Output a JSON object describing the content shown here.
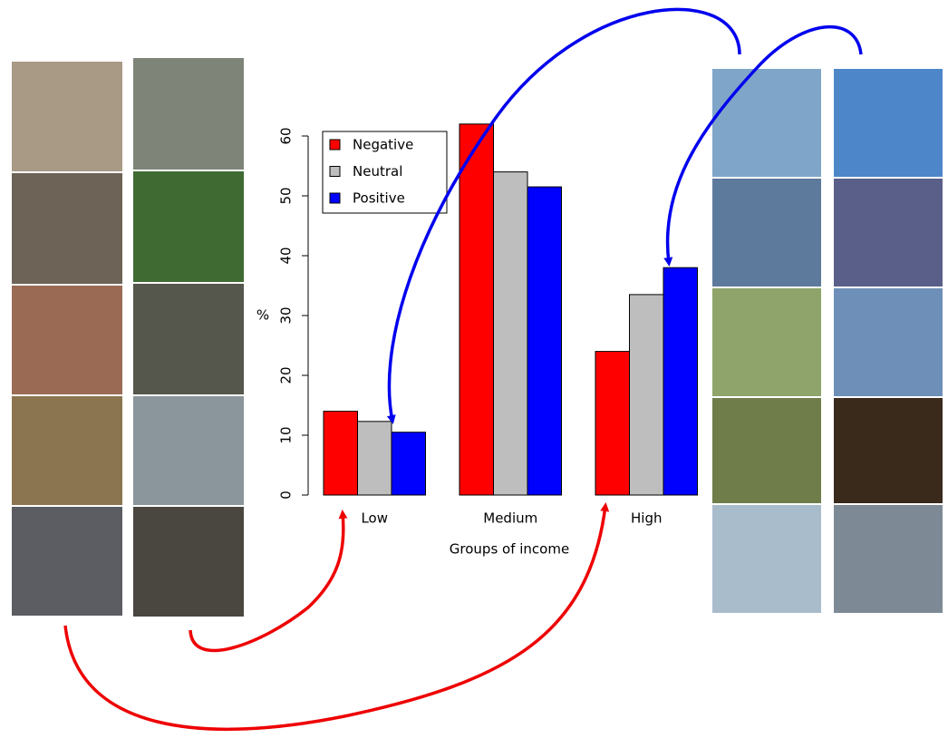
{
  "chart_data": {
    "type": "bar",
    "categories": [
      "Low",
      "Medium",
      "High"
    ],
    "series": [
      {
        "name": "Negative",
        "color": "#ff0000",
        "values": [
          14,
          62,
          24
        ]
      },
      {
        "name": "Neutral",
        "color": "#bebebe",
        "values": [
          12.3,
          54,
          33.5
        ]
      },
      {
        "name": "Positive",
        "color": "#0000ff",
        "values": [
          10.5,
          51.5,
          38
        ]
      }
    ],
    "ylabel": "%",
    "xlabel": "Groups of income",
    "ylim": [
      0,
      60
    ],
    "yticks": [
      0,
      10,
      20,
      30,
      40,
      50,
      60
    ],
    "legend": "top-left"
  }
}
